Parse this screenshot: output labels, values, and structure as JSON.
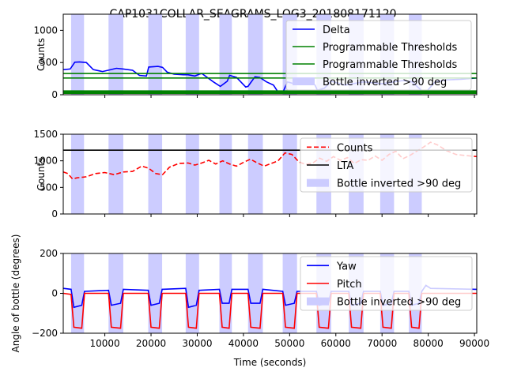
{
  "figure": {
    "title": "CAP1031COLLAR_SEAGRAMS_LOG3_201808171120"
  },
  "colors": {
    "delta": "#0000ff",
    "threshold": "#008000",
    "counts": "#ff0000",
    "lta": "#000000",
    "yaw": "#0000ff",
    "pitch": "#ff0000",
    "inverted_band": "#ccccff"
  },
  "chart_data": [
    {
      "type": "line",
      "panel": "top",
      "title": "CAP1031COLLAR_SEAGRAMS_LOG3_201808171120",
      "xlabel": "",
      "ylabel": "Counts",
      "xlim": [
        1000,
        90500
      ],
      "ylim": [
        0,
        1250
      ],
      "yticks": [
        "0",
        "500",
        "1000"
      ],
      "legend_position": "top-right",
      "inverted_intervals": [
        [
          2700,
          5500
        ],
        [
          10800,
          14000
        ],
        [
          19400,
          22400
        ],
        [
          27500,
          30400
        ],
        [
          34800,
          37500
        ],
        [
          41000,
          44200
        ],
        [
          48500,
          51600
        ],
        [
          55800,
          59000
        ],
        [
          62800,
          66000
        ],
        [
          69600,
          72600
        ],
        [
          75800,
          78600
        ]
      ],
      "series": [
        {
          "name": "Delta",
          "style": "solid",
          "x": [
            1000,
            2500,
            3500,
            4500,
            6000,
            7500,
            9500,
            11000,
            12500,
            14000,
            16000,
            17500,
            19000,
            19500,
            21500,
            22500,
            23500,
            25000,
            27000,
            28000,
            29500,
            30500,
            31000,
            33500,
            35000,
            36500,
            37000,
            38500,
            40500,
            41000,
            42500,
            43500,
            45000,
            46500,
            47500,
            48500,
            49500,
            50500,
            52500,
            54000,
            55500,
            56000,
            57500,
            59000,
            62000,
            66000,
            70000,
            74500,
            76500,
            78500,
            79500,
            81500,
            84000,
            87000,
            90500
          ],
          "values": [
            390,
            400,
            505,
            510,
            500,
            390,
            360,
            385,
            410,
            400,
            380,
            300,
            290,
            430,
            440,
            425,
            350,
            320,
            310,
            310,
            290,
            320,
            330,
            200,
            130,
            210,
            300,
            270,
            120,
            130,
            280,
            270,
            200,
            150,
            40,
            30,
            200,
            180,
            160,
            210,
            150,
            70,
            100,
            210,
            150,
            200,
            170,
            220,
            200,
            70,
            40,
            200,
            230,
            240,
            260
          ]
        },
        {
          "name": "Programmable Thresholds",
          "style": "solid",
          "values": [
            330
          ]
        },
        {
          "name": "Programmable Thresholds",
          "style": "solid",
          "values": [
            260
          ]
        },
        {
          "name": "Programmable Thresholds",
          "style": "solid",
          "values": [
            50
          ]
        },
        {
          "name": "Programmable Thresholds",
          "style": "solid",
          "values": [
            30
          ]
        },
        {
          "name": "Bottle inverted >90 deg",
          "style": "band"
        }
      ]
    },
    {
      "type": "line",
      "panel": "middle",
      "xlabel": "",
      "ylabel": "Counts",
      "xlim": [
        1000,
        90500
      ],
      "ylim": [
        0,
        1500
      ],
      "yticks": [
        "0",
        "500",
        "1000",
        "1500"
      ],
      "legend_position": "top-right",
      "series": [
        {
          "name": "Counts",
          "style": "dashed",
          "x": [
            1000,
            2000,
            3000,
            4000,
            6000,
            8000,
            10000,
            12000,
            14000,
            16000,
            18000,
            19500,
            21000,
            22500,
            24000,
            26000,
            28000,
            29500,
            31000,
            32500,
            34000,
            35500,
            37000,
            38500,
            40000,
            41500,
            43000,
            44500,
            46000,
            47500,
            49000,
            50500,
            52000,
            53500,
            55000,
            56500,
            58000,
            59500,
            61000,
            62500,
            64000,
            65500,
            67000,
            68500,
            70000,
            71500,
            73000,
            74500,
            76000,
            77500,
            79000,
            80500,
            82000,
            84000,
            86000,
            88000,
            90500
          ],
          "values": [
            790,
            760,
            660,
            680,
            700,
            760,
            780,
            740,
            790,
            800,
            900,
            860,
            760,
            740,
            880,
            950,
            960,
            920,
            960,
            1010,
            940,
            1000,
            940,
            900,
            970,
            1030,
            960,
            900,
            950,
            1000,
            1150,
            1120,
            980,
            930,
            960,
            1050,
            990,
            1080,
            1010,
            1060,
            950,
            1020,
            1010,
            1090,
            1010,
            1120,
            1180,
            1040,
            1100,
            1180,
            1260,
            1350,
            1300,
            1190,
            1120,
            1100,
            1080
          ]
        },
        {
          "name": "LTA",
          "style": "solid",
          "values": [
            1200
          ]
        },
        {
          "name": "Bottle inverted >90 deg",
          "style": "band"
        }
      ]
    },
    {
      "type": "line",
      "panel": "bottom",
      "xlabel": "Time (seconds)",
      "ylabel": "Angle of bottle (degrees)",
      "xlim": [
        1000,
        90500
      ],
      "ylim": [
        -200,
        200
      ],
      "xticks": [
        "10000",
        "20000",
        "30000",
        "40000",
        "50000",
        "60000",
        "70000",
        "80000",
        "90000"
      ],
      "yticks": [
        "−200",
        "0",
        "200"
      ],
      "legend_position": "top-right",
      "series": [
        {
          "name": "Yaw",
          "style": "solid",
          "x": [
            1000,
            2700,
            3300,
            5000,
            5600,
            10800,
            11400,
            13400,
            14000,
            19400,
            20000,
            21800,
            22400,
            27500,
            28100,
            29800,
            30400,
            34800,
            35400,
            36900,
            37500,
            41000,
            41600,
            43600,
            44200,
            48500,
            49100,
            51000,
            51600,
            55800,
            56400,
            58400,
            59000,
            62800,
            63400,
            65400,
            66000,
            69600,
            70200,
            72000,
            72600,
            75800,
            76400,
            78000,
            78600,
            79500,
            80500,
            90500
          ],
          "values": [
            25,
            20,
            -70,
            -60,
            10,
            15,
            -60,
            -50,
            20,
            15,
            -60,
            -50,
            20,
            25,
            -70,
            -60,
            15,
            20,
            -50,
            -50,
            20,
            20,
            -50,
            -50,
            20,
            10,
            -60,
            -50,
            10,
            10,
            -60,
            -50,
            10,
            10,
            -60,
            -50,
            10,
            10,
            -60,
            -50,
            10,
            10,
            -60,
            -50,
            10,
            40,
            25,
            20
          ]
        },
        {
          "name": "Pitch",
          "style": "solid",
          "x": [
            1000,
            2700,
            3300,
            5000,
            5600,
            10800,
            11400,
            13400,
            14000,
            19400,
            20000,
            21800,
            22400,
            27500,
            28100,
            29800,
            30400,
            34800,
            35400,
            36900,
            37500,
            41000,
            41600,
            43600,
            44200,
            48500,
            49100,
            51000,
            51600,
            55800,
            56400,
            58400,
            59000,
            62800,
            63400,
            65400,
            66000,
            69600,
            70200,
            72000,
            72600,
            75800,
            76400,
            78000,
            78600,
            80000,
            90500
          ],
          "values": [
            0,
            -5,
            -170,
            -175,
            0,
            0,
            -170,
            -175,
            0,
            0,
            -170,
            -175,
            0,
            0,
            -170,
            -175,
            0,
            0,
            -170,
            -175,
            0,
            0,
            -170,
            -175,
            0,
            0,
            -170,
            -175,
            0,
            0,
            -170,
            -175,
            0,
            0,
            -170,
            -175,
            0,
            0,
            -170,
            -175,
            0,
            0,
            -170,
            -175,
            0,
            0,
            0
          ]
        },
        {
          "name": "Bottle inverted >90 deg",
          "style": "band"
        }
      ]
    }
  ]
}
